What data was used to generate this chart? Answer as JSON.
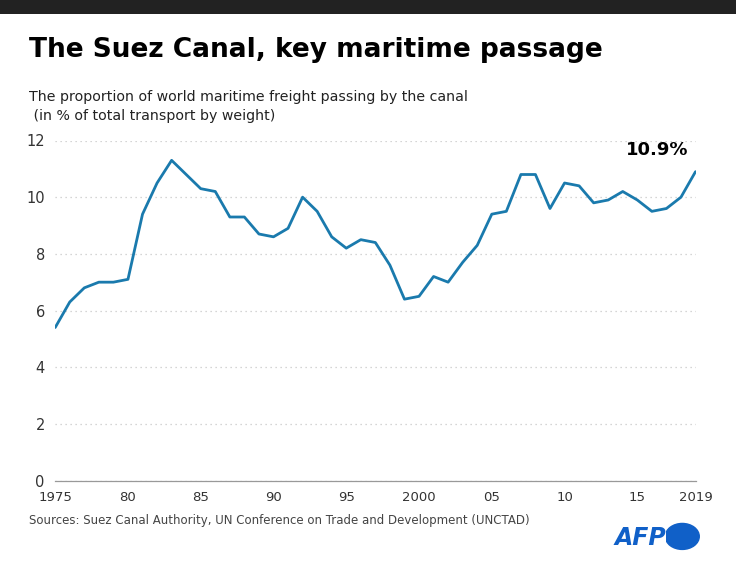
{
  "title": "The Suez Canal, key maritime passage",
  "subtitle_line1": "The proportion of world maritime freight passing by the canal",
  "subtitle_line2": " (in % of total transport by weight)",
  "source_text": "Sources: Suez Canal Authority, UN Conference on Trade and Development (UNCTAD)",
  "annotation": "10.9%",
  "line_color": "#1a7aad",
  "line_width": 2.0,
  "background_color": "#ffffff",
  "grid_color": "#c8c8c8",
  "title_color": "#000000",
  "subtitle_color": "#222222",
  "source_color": "#444444",
  "xlim": [
    1975,
    2019
  ],
  "ylim": [
    0,
    12
  ],
  "yticks": [
    0,
    2,
    4,
    6,
    8,
    10,
    12
  ],
  "xtick_labels": [
    "1975",
    "80",
    "85",
    "90",
    "95",
    "2000",
    "05",
    "10",
    "15",
    "2019"
  ],
  "xtick_positions": [
    1975,
    1980,
    1985,
    1990,
    1995,
    2000,
    2005,
    2010,
    2015,
    2019
  ],
  "years": [
    1975,
    1976,
    1977,
    1978,
    1979,
    1980,
    1981,
    1982,
    1983,
    1984,
    1985,
    1986,
    1987,
    1988,
    1989,
    1990,
    1991,
    1992,
    1993,
    1994,
    1995,
    1996,
    1997,
    1998,
    1999,
    2000,
    2001,
    2002,
    2003,
    2004,
    2005,
    2006,
    2007,
    2008,
    2009,
    2010,
    2011,
    2012,
    2013,
    2014,
    2015,
    2016,
    2017,
    2018,
    2019
  ],
  "values": [
    5.4,
    6.3,
    6.8,
    7.0,
    7.0,
    7.1,
    9.4,
    10.5,
    11.3,
    10.8,
    10.3,
    10.2,
    9.3,
    9.3,
    8.7,
    8.6,
    8.9,
    10.0,
    9.5,
    8.6,
    8.2,
    8.5,
    8.4,
    7.6,
    6.4,
    6.5,
    7.2,
    7.0,
    7.7,
    8.3,
    9.4,
    9.5,
    10.8,
    10.8,
    9.6,
    10.5,
    10.4,
    9.8,
    9.9,
    10.2,
    9.9,
    9.5,
    9.6,
    10.0,
    10.9
  ],
  "afp_blue": "#1060c8",
  "top_border_color": "#222222",
  "top_border_height": 0.008
}
